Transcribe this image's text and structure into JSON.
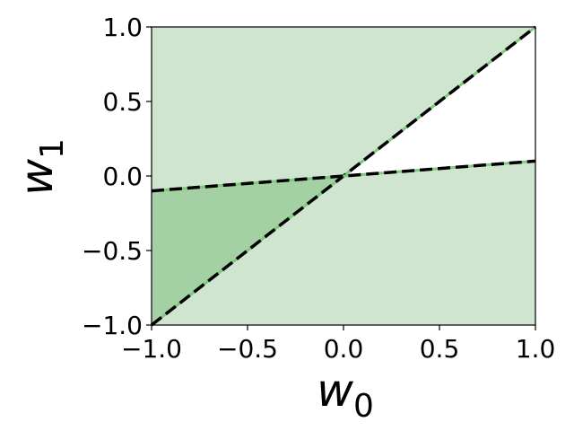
{
  "chart_data": {
    "type": "area",
    "xlabel": "w",
    "xlabel_sub": "0",
    "ylabel": "w",
    "ylabel_sub": "1",
    "xlim": [
      -1.0,
      1.0
    ],
    "ylim": [
      -1.0,
      1.0
    ],
    "xticks": [
      "−1.0",
      "−0.5",
      "0.0",
      "0.5",
      "1.0"
    ],
    "yticks": [
      "−1.0",
      "−0.5",
      "0.0",
      "0.5",
      "1.0"
    ],
    "xtick_values": [
      -1.0,
      -0.5,
      0.0,
      0.5,
      1.0
    ],
    "ytick_values": [
      -1.0,
      -0.5,
      0.0,
      0.5,
      1.0
    ],
    "grid": false,
    "lines": [
      {
        "x": [
          -1.0,
          1.0
        ],
        "y": [
          -1.0,
          1.0
        ],
        "style": "dashed",
        "color": "#000000"
      },
      {
        "x": [
          -1.0,
          1.0
        ],
        "y": [
          -0.1,
          0.1
        ],
        "style": "dashed",
        "color": "#000000"
      }
    ],
    "regions": [
      {
        "shade": "light",
        "color": "#cfe5cf",
        "points": [
          [
            -1.0,
            -1.0
          ],
          [
            1.0,
            1.0
          ],
          [
            -1.0,
            1.0
          ]
        ]
      },
      {
        "shade": "light",
        "color": "#cfe5cf",
        "points": [
          [
            -1.0,
            -0.1
          ],
          [
            1.0,
            0.1
          ],
          [
            1.0,
            -1.0
          ],
          [
            -1.0,
            -1.0
          ]
        ]
      },
      {
        "shade": "dark",
        "color": "#a3d1a3",
        "points": [
          [
            -1.0,
            -1.0
          ],
          [
            0.0,
            0.0
          ],
          [
            -1.0,
            -0.1
          ]
        ]
      }
    ]
  }
}
